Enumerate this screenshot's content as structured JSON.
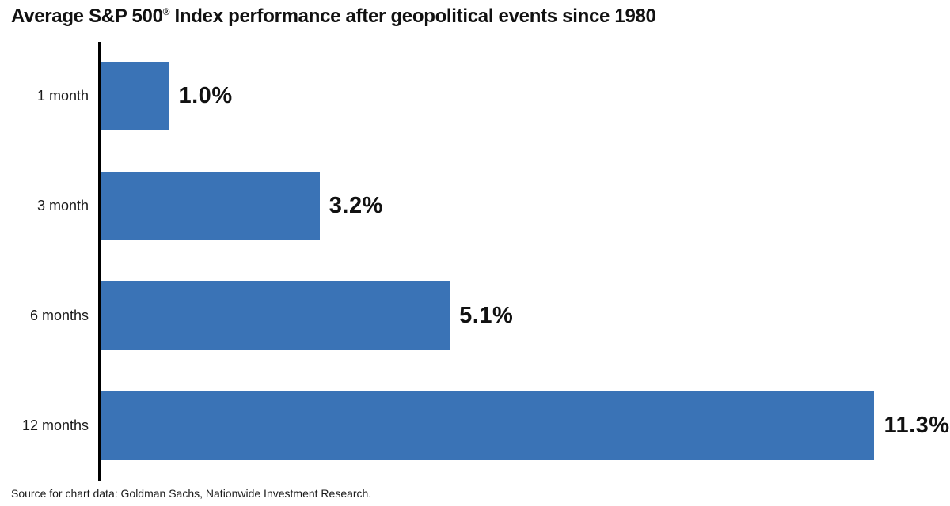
{
  "title": {
    "prefix": "Average S&P 500",
    "registered_mark": "®",
    "suffix": " Index performance after geopolitical events since 1980"
  },
  "source_note": "Source for chart data: Goldman Sachs, Nationwide Investment Research.",
  "colors": {
    "bar": "#3a73b6",
    "axis": "#000000",
    "text": "#111111"
  },
  "chart_data": {
    "type": "bar",
    "orientation": "horizontal",
    "title": "Average S&P 500® Index performance after geopolitical events since 1980",
    "categories": [
      "1 month",
      "3 month",
      "6 months",
      "12 months"
    ],
    "values": [
      1.0,
      3.2,
      5.1,
      11.3
    ],
    "value_labels": [
      "1.0%",
      "3.2%",
      "5.1%",
      "11.3%"
    ],
    "unit": "%",
    "xlabel": "",
    "ylabel": "",
    "xlim": [
      0,
      12.3
    ],
    "grid": false,
    "legend": false,
    "source": "Source for chart data: Goldman Sachs, Nationwide Investment Research."
  }
}
